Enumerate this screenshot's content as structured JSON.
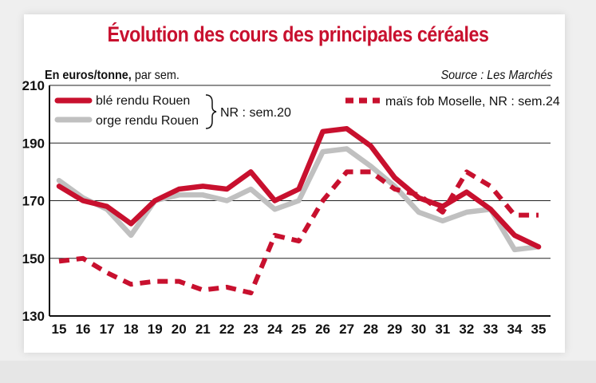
{
  "chart_data": {
    "type": "line",
    "title": "Évolution des cours des principales céréales",
    "unit_label_bold": "En euros/tonne,",
    "unit_label_rest": " par sem.",
    "source": "Source : Les Marchés",
    "x": [
      15,
      16,
      17,
      18,
      19,
      20,
      21,
      22,
      23,
      24,
      25,
      26,
      27,
      28,
      29,
      30,
      31,
      32,
      33,
      34,
      35
    ],
    "ylim": [
      130,
      210
    ],
    "yticks": [
      130,
      150,
      170,
      190,
      210
    ],
    "grid": true,
    "series": [
      {
        "name": "blé rendu Rouen",
        "color": "#c8102e",
        "style": "solid",
        "values": [
          175,
          170,
          168,
          162,
          170,
          174,
          175,
          174,
          180,
          170,
          174,
          194,
          195,
          189,
          178,
          171,
          168,
          173,
          167,
          158,
          154
        ]
      },
      {
        "name": "orge rendu Rouen",
        "color": "#c0c0c0",
        "style": "solid",
        "values": [
          177,
          171,
          167,
          158,
          170,
          172,
          172,
          170,
          174,
          167,
          170,
          187,
          188,
          182,
          175,
          166,
          163,
          166,
          167,
          153,
          154
        ]
      },
      {
        "name": "maïs fob Moselle, NR : sem.24",
        "color": "#c8102e",
        "style": "dashed",
        "values": [
          149,
          150,
          145,
          141,
          142,
          142,
          139,
          140,
          138,
          158,
          156,
          170,
          180,
          180,
          174,
          172,
          166,
          180,
          175,
          165,
          165
        ]
      }
    ],
    "bracket_note": "NR : sem.20",
    "legend_placement": "top"
  }
}
